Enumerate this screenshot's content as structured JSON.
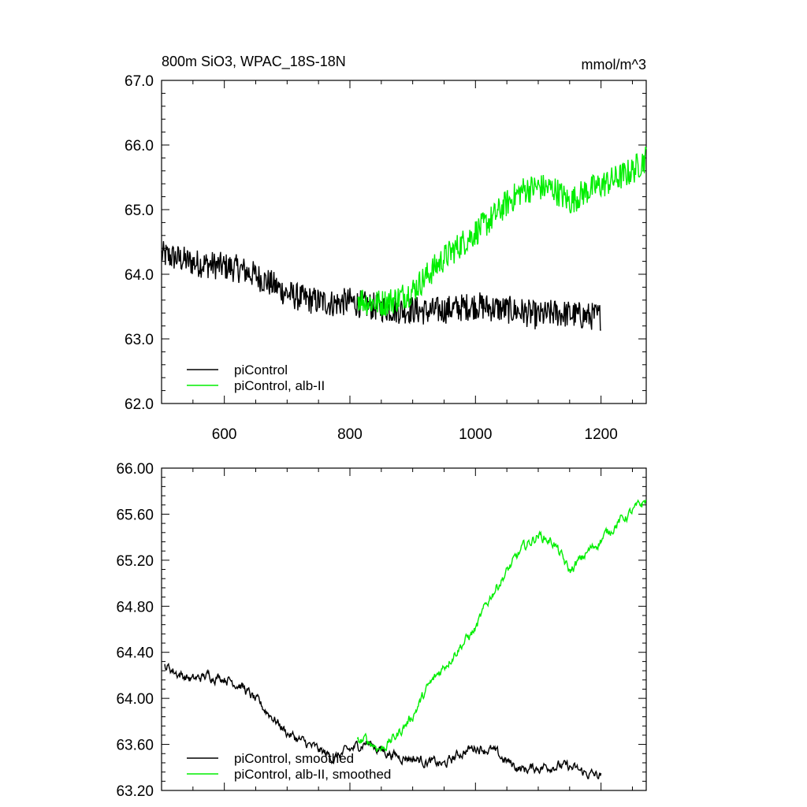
{
  "chart_data": [
    {
      "type": "line",
      "title": "800m SiO3, WPAC_18S-18N",
      "units": "mmol/m^3",
      "xlim": [
        500,
        1272
      ],
      "ylim": [
        62.0,
        67.0
      ],
      "xticks": [
        600,
        800,
        1000,
        1200
      ],
      "xtick_labels": [
        "600",
        "800",
        "1000",
        "1200"
      ],
      "yticks": [
        62.0,
        63.0,
        64.0,
        65.0,
        66.0,
        67.0
      ],
      "ytick_labels": [
        "62.0",
        "63.0",
        "64.0",
        "65.0",
        "66.0",
        "67.0"
      ],
      "legend_position": "bottom-left",
      "series": [
        {
          "name": "piControl",
          "color": "#000000",
          "points": [
            [
              500,
              64.3
            ],
            [
              525,
              64.25
            ],
            [
              550,
              64.18
            ],
            [
              575,
              64.15
            ],
            [
              600,
              64.12
            ],
            [
              625,
              64.08
            ],
            [
              650,
              63.98
            ],
            [
              675,
              63.85
            ],
            [
              700,
              63.7
            ],
            [
              725,
              63.62
            ],
            [
              750,
              63.58
            ],
            [
              775,
              63.55
            ],
            [
              800,
              63.58
            ],
            [
              825,
              63.52
            ],
            [
              850,
              63.48
            ],
            [
              875,
              63.45
            ],
            [
              900,
              63.45
            ],
            [
              925,
              63.42
            ],
            [
              950,
              63.45
            ],
            [
              975,
              63.48
            ],
            [
              1000,
              63.52
            ],
            [
              1025,
              63.48
            ],
            [
              1050,
              63.45
            ],
            [
              1075,
              63.42
            ],
            [
              1100,
              63.35
            ],
            [
              1125,
              63.4
            ],
            [
              1150,
              63.38
            ],
            [
              1175,
              63.35
            ],
            [
              1200,
              63.35
            ]
          ]
        },
        {
          "name": "piControl, alb-II",
          "color": "#00ee00",
          "points": [
            [
              812,
              63.65
            ],
            [
              825,
              63.58
            ],
            [
              850,
              63.55
            ],
            [
              875,
              63.62
            ],
            [
              900,
              63.75
            ],
            [
              925,
              64.0
            ],
            [
              950,
              64.25
            ],
            [
              975,
              64.45
            ],
            [
              1000,
              64.65
            ],
            [
              1025,
              64.85
            ],
            [
              1050,
              65.1
            ],
            [
              1075,
              65.3
            ],
            [
              1100,
              65.35
            ],
            [
              1125,
              65.32
            ],
            [
              1150,
              65.12
            ],
            [
              1175,
              65.28
            ],
            [
              1200,
              65.38
            ],
            [
              1225,
              65.48
            ],
            [
              1250,
              65.6
            ],
            [
              1272,
              65.8
            ]
          ]
        }
      ]
    },
    {
      "type": "line",
      "xlim": [
        500,
        1272
      ],
      "ylim": [
        63.2,
        66.0
      ],
      "xticks": [
        600,
        800,
        1000,
        1200
      ],
      "yticks": [
        63.2,
        63.6,
        64.0,
        64.4,
        64.8,
        65.2,
        65.6,
        66.0
      ],
      "ytick_labels": [
        "63.20",
        "63.60",
        "64.00",
        "64.40",
        "64.80",
        "65.20",
        "65.60",
        "66.00"
      ],
      "legend_position": "bottom-left",
      "series": [
        {
          "name": "piControl, smoothed",
          "color": "#000000",
          "points": [
            [
              505,
              64.29
            ],
            [
              525,
              64.22
            ],
            [
              550,
              64.16
            ],
            [
              575,
              64.2
            ],
            [
              600,
              64.18
            ],
            [
              625,
              64.12
            ],
            [
              650,
              63.98
            ],
            [
              675,
              63.85
            ],
            [
              700,
              63.7
            ],
            [
              725,
              63.62
            ],
            [
              750,
              63.55
            ],
            [
              775,
              63.48
            ],
            [
              800,
              63.55
            ],
            [
              825,
              63.62
            ],
            [
              850,
              63.55
            ],
            [
              875,
              63.5
            ],
            [
              900,
              63.48
            ],
            [
              925,
              63.45
            ],
            [
              950,
              63.42
            ],
            [
              975,
              63.52
            ],
            [
              1000,
              63.58
            ],
            [
              1025,
              63.55
            ],
            [
              1050,
              63.45
            ],
            [
              1075,
              63.38
            ],
            [
              1100,
              63.4
            ],
            [
              1125,
              63.42
            ],
            [
              1150,
              63.4
            ],
            [
              1175,
              63.35
            ],
            [
              1200,
              63.32
            ]
          ]
        },
        {
          "name": "piControl, alb-II, smoothed",
          "color": "#00ee00",
          "points": [
            [
              812,
              63.62
            ],
            [
              825,
              63.64
            ],
            [
              850,
              63.56
            ],
            [
              875,
              63.68
            ],
            [
              900,
              63.85
            ],
            [
              925,
              64.1
            ],
            [
              950,
              64.28
            ],
            [
              975,
              64.45
            ],
            [
              1000,
              64.6
            ],
            [
              1025,
              64.9
            ],
            [
              1050,
              65.1
            ],
            [
              1075,
              65.3
            ],
            [
              1100,
              65.42
            ],
            [
              1125,
              65.35
            ],
            [
              1150,
              65.1
            ],
            [
              1175,
              65.25
            ],
            [
              1200,
              65.38
            ],
            [
              1225,
              65.52
            ],
            [
              1250,
              65.62
            ],
            [
              1272,
              65.72
            ]
          ]
        }
      ]
    }
  ]
}
